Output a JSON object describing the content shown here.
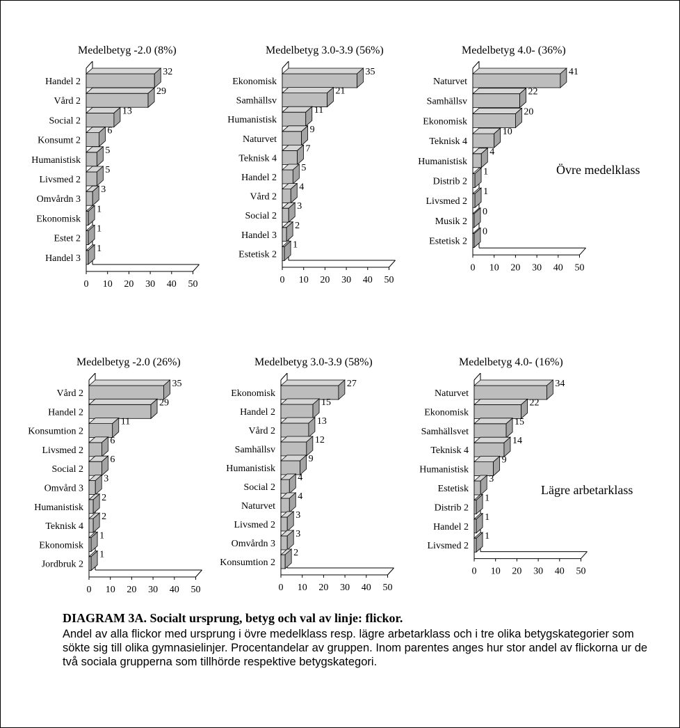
{
  "colors": {
    "bar_front": "#bdbdbd",
    "bar_top": "#d6d6d6",
    "bar_side": "#a4a4a4",
    "axis": "#000000"
  },
  "groups": {
    "upper": "Övre medelklass",
    "lower": "Lägre arbetarklass"
  },
  "caption": {
    "title": "DIAGRAM 3A. Socialt ursprung, betyg och val av linje: flickor.",
    "text": "Andel av alla flickor med ursprung i övre medelklass resp. lägre arbetarklass och i tre olika betygskategorier som sökte sig till olika gymnasielinjer. Procentandelar av gruppen. Inom parentes anges hur stor andel av flickorna ur de två sociala grupperna som tillhörde respektive betygskategori."
  },
  "chart_data": [
    {
      "type": "bar",
      "orientation": "horizontal",
      "title": "Medelbetyg -2.0 (8%)",
      "categories": [
        "Handel 2",
        "Vård 2",
        "Social 2",
        "Konsumt 2",
        "Humanistisk",
        "Livsmed 2",
        "Omvårdn 3",
        "Ekonomisk",
        "Estet 2",
        "Handel 3"
      ],
      "values": [
        32,
        29,
        13,
        6,
        5,
        5,
        3,
        1,
        1,
        1
      ],
      "xlim": [
        0,
        50
      ],
      "xticks": [
        "0",
        "10",
        "20",
        "30",
        "40",
        "50"
      ],
      "group": "Övre medelklass"
    },
    {
      "type": "bar",
      "orientation": "horizontal",
      "title": "Medelbetyg 3.0-3.9 (56%)",
      "categories": [
        "Ekonomisk",
        "Samhällsv",
        "Humanistisk",
        "Naturvet",
        "Teknisk 4",
        "Handel 2",
        "Vård 2",
        "Social 2",
        "Handel 3",
        "Estetisk 2"
      ],
      "values": [
        35,
        21,
        11,
        9,
        7,
        5,
        4,
        3,
        2,
        1
      ],
      "xlim": [
        0,
        50
      ],
      "xticks": [
        "0",
        "10",
        "20",
        "30",
        "40",
        "50"
      ],
      "group": "Övre medelklass"
    },
    {
      "type": "bar",
      "orientation": "horizontal",
      "title": "Medelbetyg 4.0- (36%)",
      "categories": [
        "Naturvet",
        "Samhällsv",
        "Ekonomisk",
        "Teknisk 4",
        "Humanistisk",
        "Distrib 2",
        "Livsmed 2",
        "Musik 2",
        "Estetisk 2"
      ],
      "values": [
        41,
        22,
        20,
        10,
        4,
        1,
        1,
        0,
        0
      ],
      "xlim": [
        0,
        50
      ],
      "xticks": [
        "0",
        "10",
        "20",
        "30",
        "40",
        "50"
      ],
      "group": "Övre medelklass"
    },
    {
      "type": "bar",
      "orientation": "horizontal",
      "title": "Medelbetyg -2.0 (26%)",
      "categories": [
        "Vård 2",
        "Handel 2",
        "Konsumtion 2",
        "Livsmed 2",
        "Social 2",
        "Omvård 3",
        "Humanistisk",
        "Teknisk 4",
        "Ekonomisk",
        "Jordbruk 2"
      ],
      "values": [
        35,
        29,
        11,
        6,
        6,
        3,
        2,
        2,
        1,
        1
      ],
      "xlim": [
        0,
        50
      ],
      "xticks": [
        "0",
        "10",
        "20",
        "30",
        "40",
        "50"
      ],
      "group": "Lägre arbetarklass"
    },
    {
      "type": "bar",
      "orientation": "horizontal",
      "title": "Medelbetyg 3.0-3.9 (58%)",
      "categories": [
        "Ekonomisk",
        "Handel 2",
        "Vård 2",
        "Samhällsv",
        "Humanistisk",
        "Social 2",
        "Naturvet",
        "Livsmed 2",
        "Omvårdn 3",
        "Konsumtion 2"
      ],
      "values": [
        27,
        15,
        13,
        12,
        9,
        4,
        4,
        3,
        3,
        2
      ],
      "xlim": [
        0,
        50
      ],
      "xticks": [
        "0",
        "10",
        "20",
        "30",
        "40",
        "50"
      ],
      "group": "Lägre arbetarklass"
    },
    {
      "type": "bar",
      "orientation": "horizontal",
      "title": "Medelbetyg 4.0- (16%)",
      "categories": [
        "Naturvet",
        "Ekonomisk",
        "Samhällsvet",
        "Teknisk 4",
        "Humanistisk",
        "Estetisk",
        "Distrib 2",
        "Handel 2",
        "Livsmed 2"
      ],
      "values": [
        34,
        22,
        15,
        14,
        9,
        3,
        1,
        1,
        1
      ],
      "xlim": [
        0,
        50
      ],
      "xticks": [
        "0",
        "10",
        "20",
        "30",
        "40",
        "50"
      ],
      "group": "Lägre arbetarklass"
    }
  ]
}
